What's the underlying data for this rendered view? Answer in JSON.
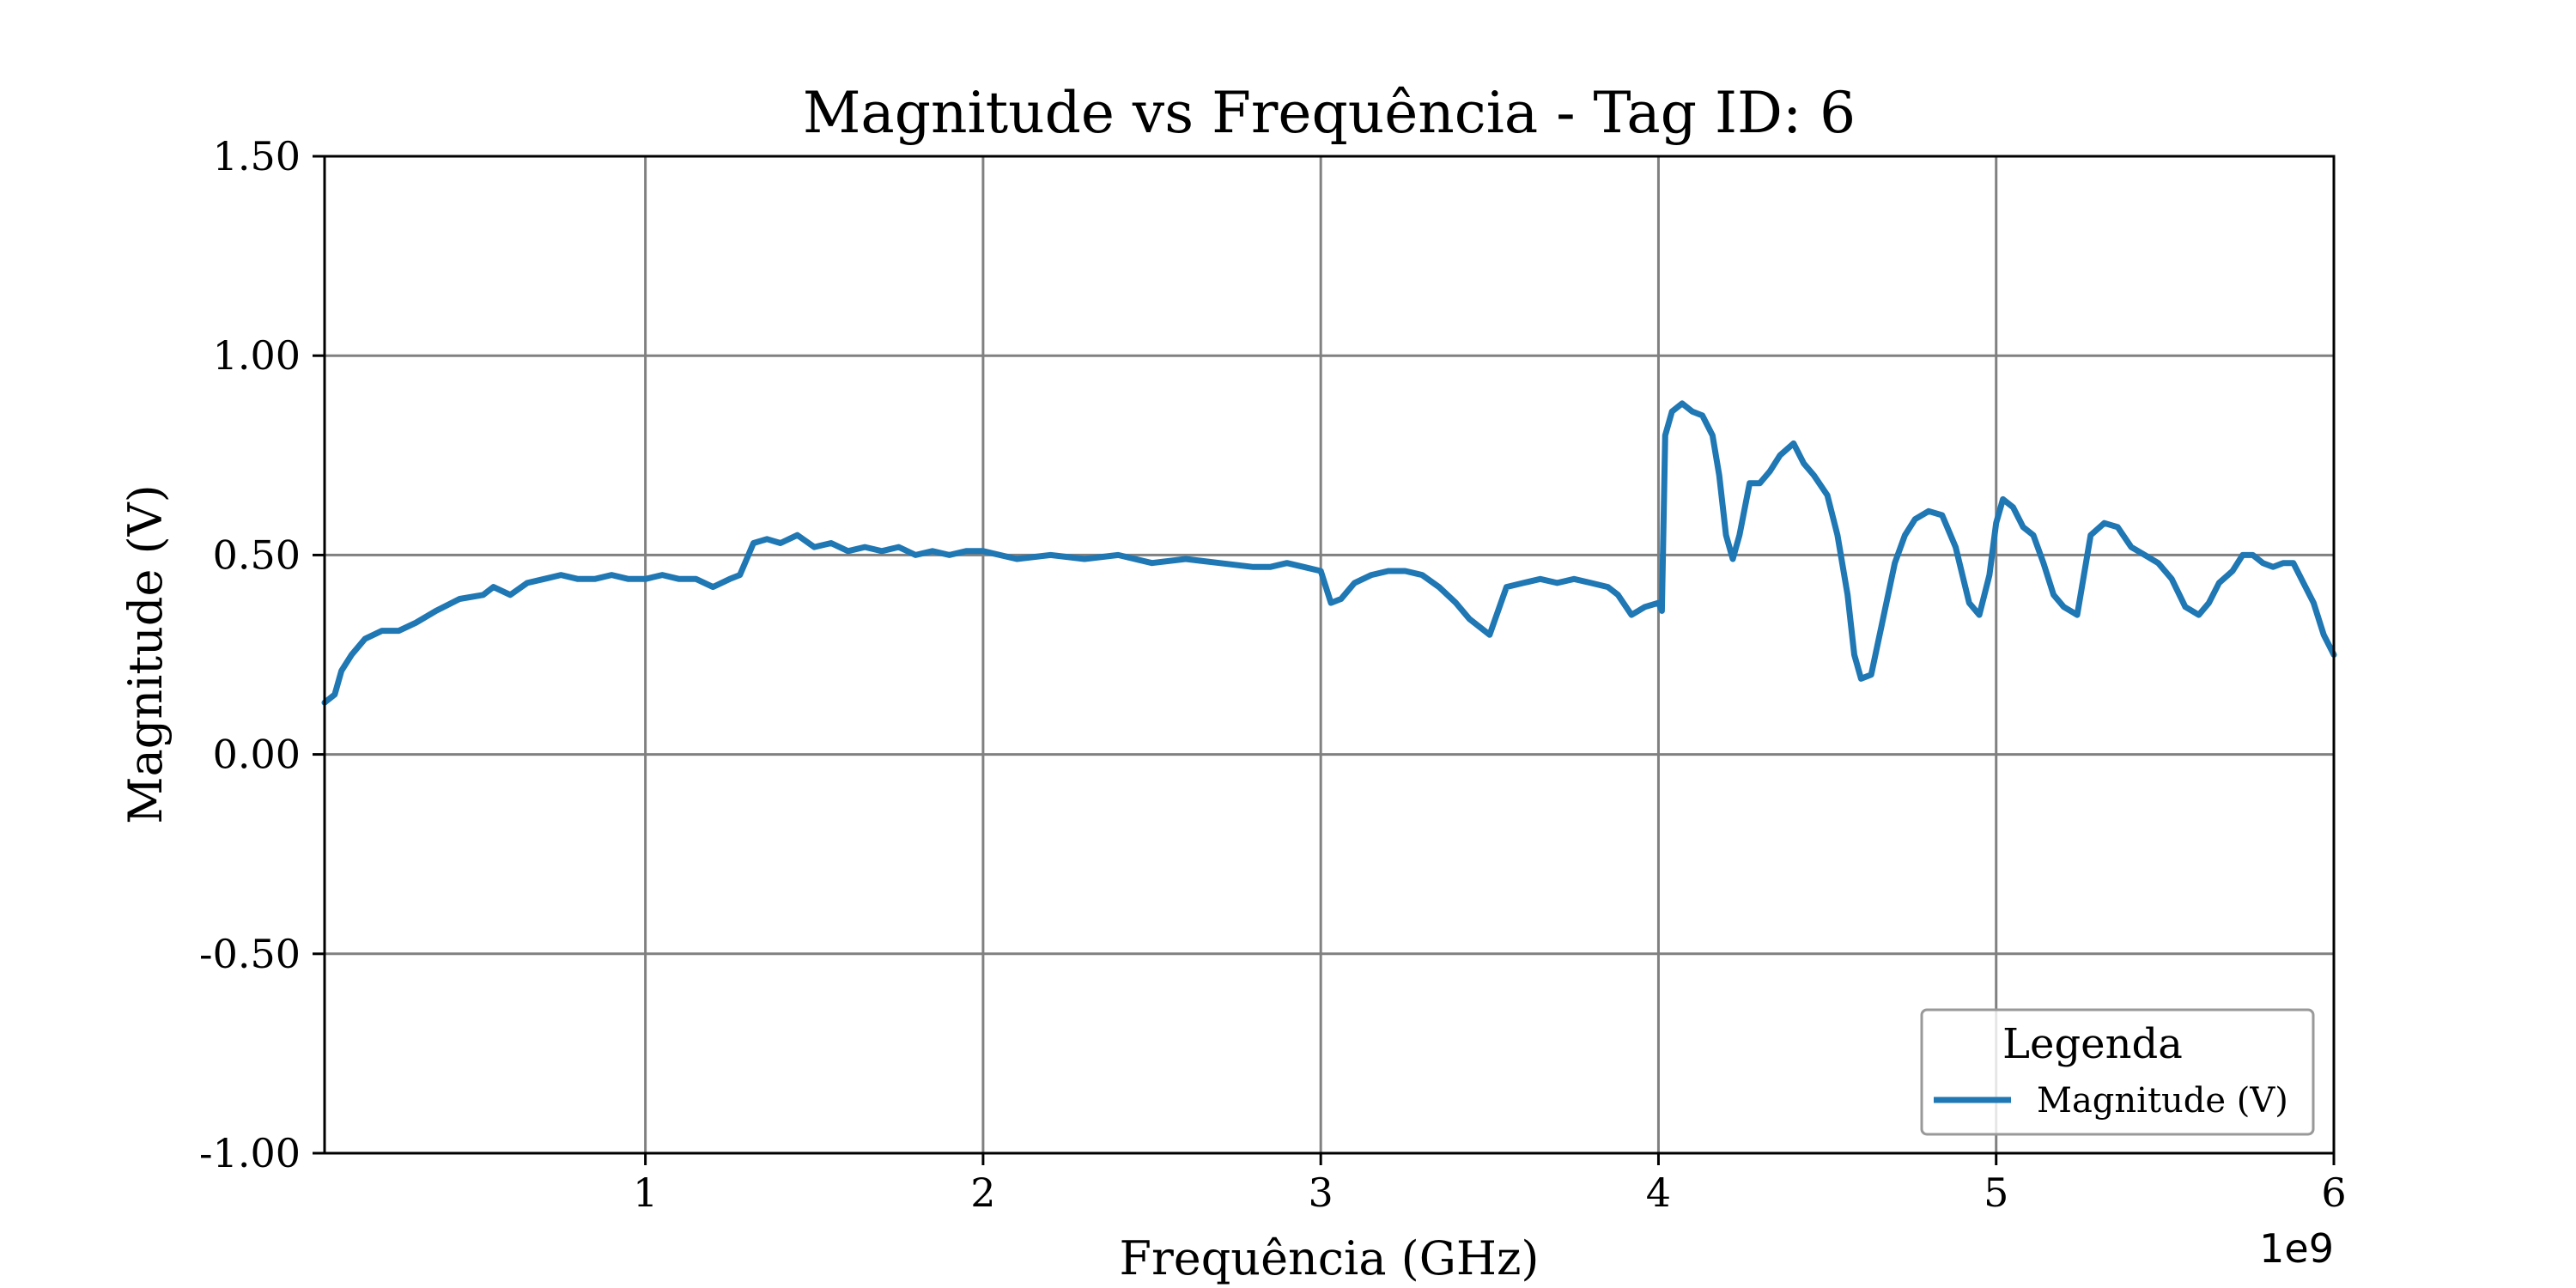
{
  "chart_data": {
    "type": "line",
    "title": "Magnitude vs Frequência - Tag ID: 6",
    "xlabel": "Frequência (GHz)",
    "ylabel": "Magnitude (V)",
    "x_offset_label": "1e9",
    "xlim": [
      0.05,
      6.0
    ],
    "ylim": [
      -1.0,
      1.5
    ],
    "x_ticks": [
      1,
      2,
      3,
      4,
      5,
      6
    ],
    "x_tick_labels": [
      "1",
      "2",
      "3",
      "4",
      "5",
      "6"
    ],
    "y_ticks": [
      -1.0,
      -0.5,
      0.0,
      0.5,
      1.0,
      1.5
    ],
    "y_tick_labels": [
      "-1.00",
      "-0.50",
      "0.00",
      "0.50",
      "1.00",
      "1.50"
    ],
    "grid": true,
    "legend": {
      "title": "Legenda",
      "placement": "lower-right"
    },
    "series": [
      {
        "name": "Magnitude (V)",
        "color": "#1f77b4",
        "x": [
          0.05,
          0.08,
          0.1,
          0.13,
          0.17,
          0.22,
          0.27,
          0.32,
          0.38,
          0.45,
          0.52,
          0.55,
          0.6,
          0.65,
          0.7,
          0.75,
          0.8,
          0.85,
          0.9,
          0.95,
          1.0,
          1.05,
          1.1,
          1.15,
          1.2,
          1.25,
          1.28,
          1.32,
          1.36,
          1.4,
          1.45,
          1.5,
          1.55,
          1.6,
          1.65,
          1.7,
          1.75,
          1.8,
          1.85,
          1.9,
          1.95,
          2.0,
          2.1,
          2.2,
          2.3,
          2.4,
          2.5,
          2.6,
          2.7,
          2.8,
          2.85,
          2.9,
          2.95,
          3.0,
          3.03,
          3.06,
          3.1,
          3.15,
          3.2,
          3.25,
          3.3,
          3.35,
          3.4,
          3.44,
          3.47,
          3.5,
          3.55,
          3.6,
          3.65,
          3.7,
          3.75,
          3.8,
          3.85,
          3.88,
          3.92,
          3.96,
          4.0,
          4.01,
          4.02,
          4.04,
          4.07,
          4.1,
          4.13,
          4.16,
          4.18,
          4.2,
          4.22,
          4.24,
          4.27,
          4.3,
          4.33,
          4.36,
          4.4,
          4.43,
          4.46,
          4.5,
          4.53,
          4.56,
          4.58,
          4.6,
          4.63,
          4.66,
          4.7,
          4.73,
          4.76,
          4.8,
          4.84,
          4.88,
          4.92,
          4.95,
          4.98,
          5.0,
          5.02,
          5.05,
          5.08,
          5.11,
          5.14,
          5.17,
          5.2,
          5.24,
          5.28,
          5.32,
          5.36,
          5.4,
          5.44,
          5.48,
          5.52,
          5.56,
          5.6,
          5.63,
          5.66,
          5.7,
          5.73,
          5.76,
          5.79,
          5.82,
          5.85,
          5.88,
          5.91,
          5.94,
          5.97,
          6.0
        ],
        "y": [
          0.13,
          0.15,
          0.21,
          0.25,
          0.29,
          0.31,
          0.31,
          0.33,
          0.36,
          0.39,
          0.4,
          0.42,
          0.4,
          0.43,
          0.44,
          0.45,
          0.44,
          0.44,
          0.45,
          0.44,
          0.44,
          0.45,
          0.44,
          0.44,
          0.42,
          0.44,
          0.45,
          0.53,
          0.54,
          0.53,
          0.55,
          0.52,
          0.53,
          0.51,
          0.52,
          0.51,
          0.52,
          0.5,
          0.51,
          0.5,
          0.51,
          0.51,
          0.49,
          0.5,
          0.49,
          0.5,
          0.48,
          0.49,
          0.48,
          0.47,
          0.47,
          0.48,
          0.47,
          0.46,
          0.38,
          0.39,
          0.43,
          0.45,
          0.46,
          0.46,
          0.45,
          0.42,
          0.38,
          0.34,
          0.32,
          0.3,
          0.42,
          0.43,
          0.44,
          0.43,
          0.44,
          0.43,
          0.42,
          0.4,
          0.35,
          0.37,
          0.38,
          0.36,
          0.8,
          0.86,
          0.88,
          0.86,
          0.85,
          0.8,
          0.7,
          0.55,
          0.49,
          0.55,
          0.68,
          0.68,
          0.71,
          0.75,
          0.78,
          0.73,
          0.7,
          0.65,
          0.55,
          0.4,
          0.25,
          0.19,
          0.2,
          0.32,
          0.48,
          0.55,
          0.59,
          0.61,
          0.6,
          0.52,
          0.38,
          0.35,
          0.45,
          0.58,
          0.64,
          0.62,
          0.57,
          0.55,
          0.48,
          0.4,
          0.37,
          0.35,
          0.55,
          0.58,
          0.57,
          0.52,
          0.5,
          0.48,
          0.44,
          0.37,
          0.35,
          0.38,
          0.43,
          0.46,
          0.5,
          0.5,
          0.48,
          0.47,
          0.48,
          0.48,
          0.43,
          0.38,
          0.3,
          0.25
        ]
      }
    ]
  }
}
